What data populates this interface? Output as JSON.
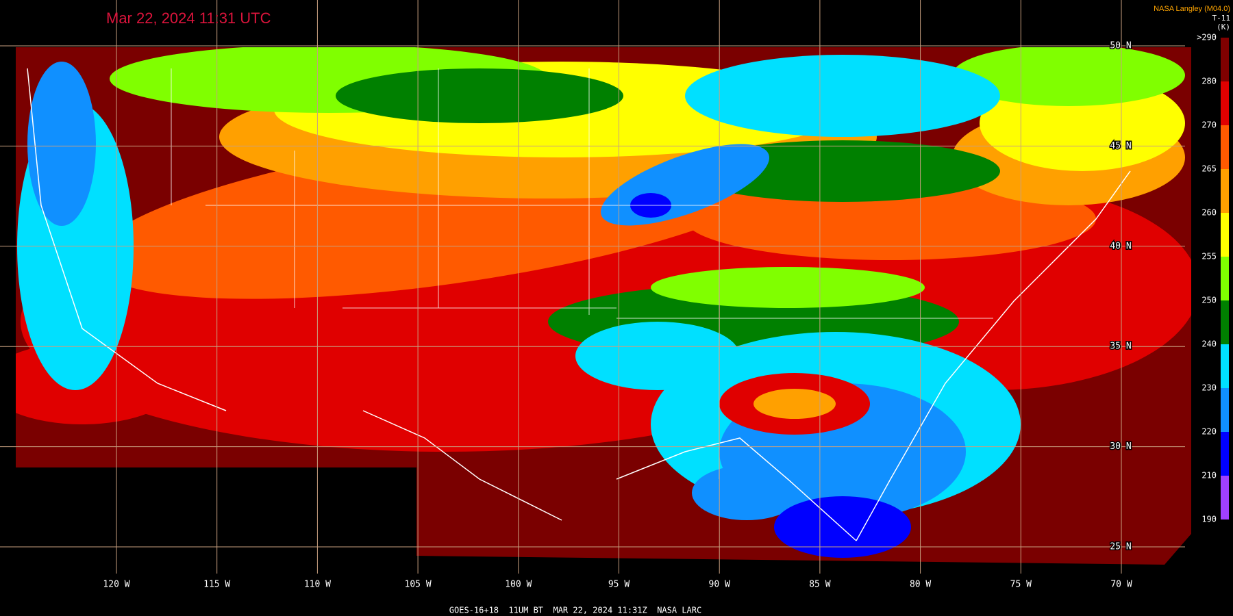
{
  "header": {
    "timestamp": "Mar 22, 2024 11:31 UTC",
    "source": "NASA Langley (M04.0)"
  },
  "colorbar": {
    "title": "T-11",
    "unit": "(K)",
    "labels": [
      ">290",
      "280",
      "270",
      "265",
      "260",
      "255",
      "250",
      "240",
      "230",
      "220",
      "210",
      "190"
    ],
    "colors": [
      "#800000",
      "#e00000",
      "#ff5a00",
      "#ffa000",
      "#ffff00",
      "#80ff00",
      "#008000",
      "#00e0ff",
      "#1090ff",
      "#0000ff",
      "#a040ff"
    ]
  },
  "latitude_labels": [
    "50 N",
    "45 N",
    "40 N",
    "35 N",
    "30 N",
    "25 N"
  ],
  "longitude_labels": [
    "120 W",
    "115 W",
    "110 W",
    "105 W",
    "100 W",
    "95 W",
    "90 W",
    "85 W",
    "80 W",
    "75 W",
    "70 W"
  ],
  "footer": "GOES-16+18  11UM BT  MAR 22, 2024 11:31Z  NASA LARC"
}
